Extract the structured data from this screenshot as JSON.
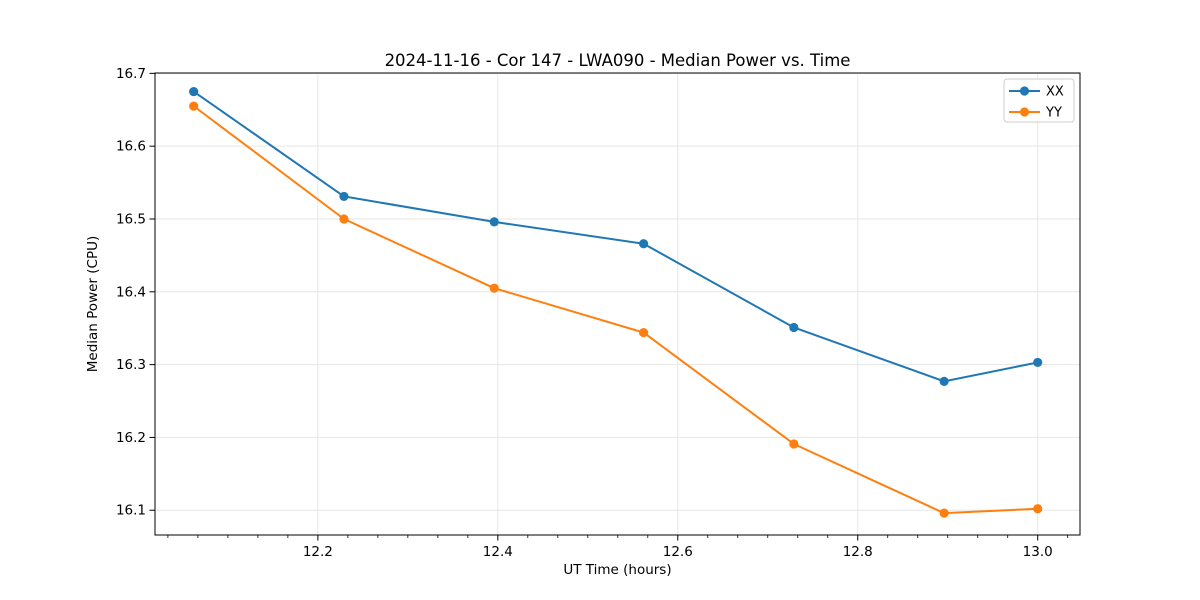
{
  "chart_data": {
    "type": "line",
    "title": "2024-11-16 - Cor 147 - LWA090 - Median Power vs. Time",
    "xlabel": "UT Time (hours)",
    "ylabel": "Median Power (CPU)",
    "xlim": [
      12.019,
      13.047
    ],
    "ylim": [
      16.066,
      16.7005
    ],
    "xticks": [
      12.2,
      12.4,
      12.6,
      12.8,
      13.0
    ],
    "xtick_labels": [
      "12.2",
      "12.4",
      "12.6",
      "12.8",
      "13.0"
    ],
    "x_minor_tick_step": 0.033333,
    "yticks": [
      16.1,
      16.2,
      16.3,
      16.4,
      16.5,
      16.6,
      16.7
    ],
    "ytick_labels": [
      "16.1",
      "16.2",
      "16.3",
      "16.4",
      "16.5",
      "16.6",
      "16.7"
    ],
    "grid": true,
    "grid_color": "#e6e6e6",
    "frame_color": "#000000",
    "legend_position": "upper right",
    "x": [
      12.062,
      12.229,
      12.396,
      12.562,
      12.729,
      12.896,
      13.0
    ],
    "series": [
      {
        "name": "XX",
        "color": "#1f77b4",
        "values": [
          16.675,
          16.531,
          16.496,
          16.466,
          16.351,
          16.277,
          16.303
        ]
      },
      {
        "name": "YY",
        "color": "#ff7f0e",
        "values": [
          16.655,
          16.5,
          16.405,
          16.344,
          16.191,
          16.096,
          16.102
        ]
      }
    ]
  }
}
